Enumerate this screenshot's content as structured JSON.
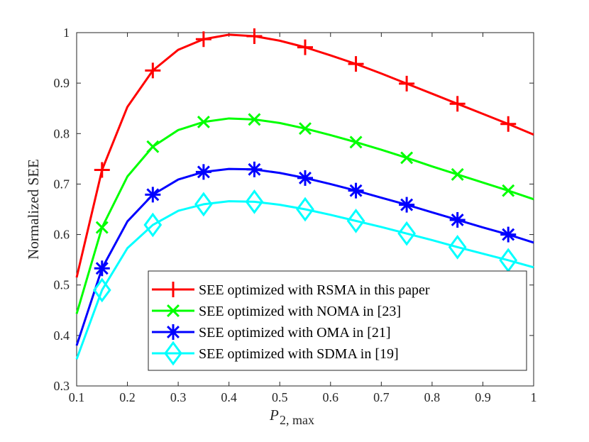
{
  "chart_data": {
    "type": "line",
    "title": "",
    "xlabel": {
      "main": "P",
      "sub": "2, max"
    },
    "ylabel": "Normalized SEE",
    "xlim": [
      0.1,
      1
    ],
    "ylim": [
      0.3,
      1
    ],
    "x_ticks": [
      "0.1",
      "0.2",
      "0.3",
      "0.4",
      "0.5",
      "0.6",
      "0.7",
      "0.8",
      "0.9",
      "1"
    ],
    "y_ticks": [
      "0.3",
      "0.4",
      "0.5",
      "0.6",
      "0.7",
      "0.8",
      "0.9",
      "1"
    ],
    "grid": false,
    "legend_position": "bottom-right",
    "x": [
      0.1,
      0.15,
      0.2,
      0.25,
      0.3,
      0.35,
      0.4,
      0.45,
      0.5,
      0.55,
      0.6,
      0.65,
      0.7,
      0.75,
      0.8,
      0.85,
      0.9,
      0.95,
      1.0
    ],
    "marker_x": [
      0.15,
      0.25,
      0.35,
      0.45,
      0.55,
      0.65,
      0.75,
      0.85,
      0.95
    ],
    "series": [
      {
        "name": "SEE optimized with RSMA in this paper",
        "color": "#ff0000",
        "marker": "plus",
        "values": [
          0.515,
          0.728,
          0.853,
          0.925,
          0.966,
          0.987,
          0.996,
          0.993,
          0.984,
          0.971,
          0.955,
          0.938,
          0.919,
          0.899,
          0.879,
          0.859,
          0.839,
          0.819,
          0.798
        ]
      },
      {
        "name": "SEE optimized with NOMA in [23]",
        "color": "#00ff00",
        "marker": "x",
        "values": [
          0.443,
          0.614,
          0.715,
          0.774,
          0.807,
          0.823,
          0.83,
          0.828,
          0.821,
          0.81,
          0.797,
          0.783,
          0.768,
          0.752,
          0.735,
          0.719,
          0.703,
          0.687,
          0.67
        ]
      },
      {
        "name": "SEE optimized with OMA in [21]",
        "color": "#0000ff",
        "marker": "asterisk",
        "values": [
          0.38,
          0.533,
          0.626,
          0.679,
          0.709,
          0.724,
          0.73,
          0.729,
          0.722,
          0.712,
          0.7,
          0.687,
          0.673,
          0.659,
          0.644,
          0.629,
          0.614,
          0.6,
          0.584
        ]
      },
      {
        "name": "SEE optimized with SDMA in [19]",
        "color": "#00ffff",
        "marker": "diamond",
        "values": [
          0.353,
          0.49,
          0.573,
          0.619,
          0.647,
          0.66,
          0.666,
          0.665,
          0.659,
          0.65,
          0.639,
          0.627,
          0.615,
          0.602,
          0.589,
          0.575,
          0.562,
          0.549,
          0.535
        ]
      }
    ]
  }
}
